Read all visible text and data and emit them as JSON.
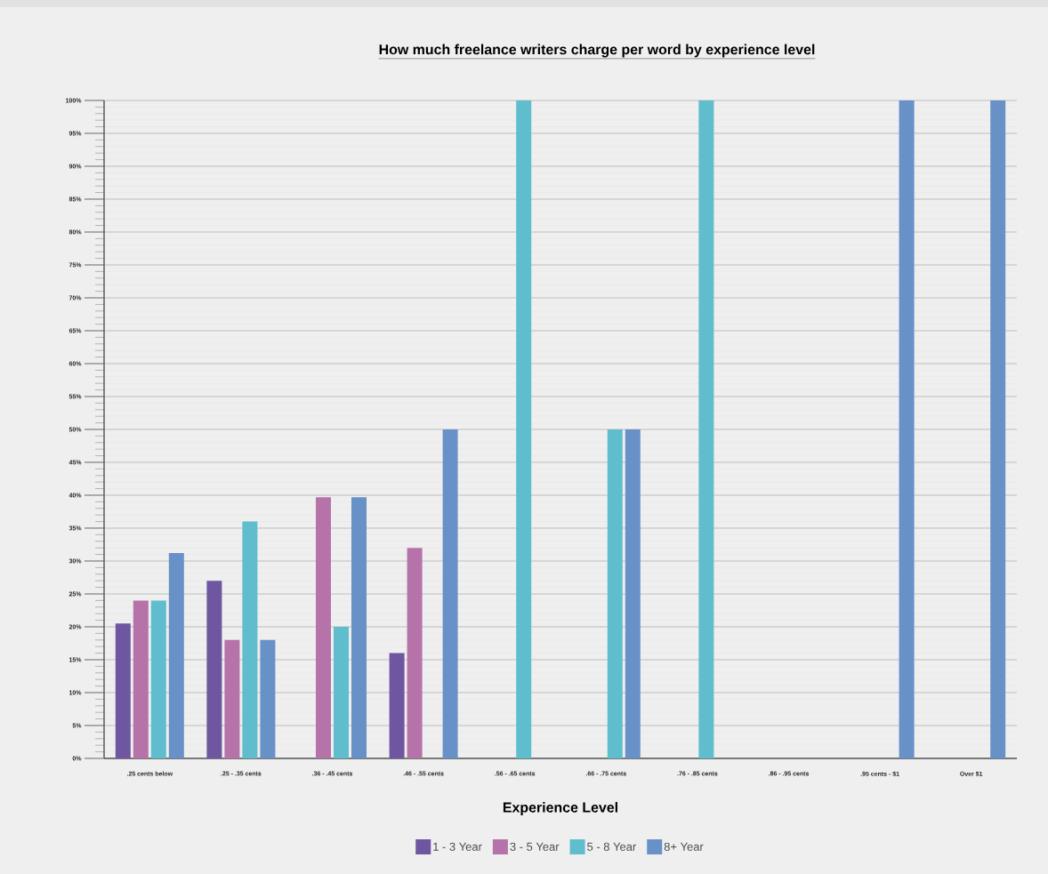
{
  "chart_data": {
    "type": "bar",
    "title": "How much freelance writers charge per word by experience level",
    "xlabel": "Experience Level",
    "categories": [
      ".25 cents below",
      ".25 - .35 cents",
      ".36 - .45 cents",
      ".46 - .55 cents",
      ".56 - .65 cents",
      ".66 - .75 cents",
      ".76 - .85 cents",
      ".86 - .95 cents",
      ".95 cents - $1",
      "Over $1"
    ],
    "series": [
      {
        "name": "1 - 3 Year",
        "color": "#6e56a0",
        "values": [
          20.5,
          27,
          0,
          16,
          0,
          0,
          0,
          0,
          0,
          0
        ]
      },
      {
        "name": "3 - 5 Year",
        "color": "#b573a9",
        "values": [
          24,
          18,
          39.7,
          32,
          0,
          0,
          0,
          0,
          0,
          0
        ]
      },
      {
        "name": "5 - 8 Year",
        "color": "#5fbdce",
        "values": [
          24,
          36,
          20,
          0,
          100,
          50,
          100,
          0,
          0,
          0
        ]
      },
      {
        "name": "8+ Year",
        "color": "#6891c8",
        "values": [
          31.2,
          18,
          39.7,
          50,
          0,
          50,
          0,
          0,
          100,
          100
        ]
      }
    ],
    "ylim": [
      0,
      100
    ],
    "yticks": [
      {
        "value": 0,
        "label": "0%"
      },
      {
        "value": 5,
        "label": "5%"
      },
      {
        "value": 10,
        "label": "10%"
      },
      {
        "value": 15,
        "label": "15%"
      },
      {
        "value": 20,
        "label": "20%"
      },
      {
        "value": 25,
        "label": "25%"
      },
      {
        "value": 30,
        "label": "30%"
      },
      {
        "value": 35,
        "label": "35%"
      },
      {
        "value": 40,
        "label": "40%"
      },
      {
        "value": 45,
        "label": "45%"
      },
      {
        "value": 50,
        "label": "50%"
      },
      {
        "value": 55,
        "label": "55%"
      },
      {
        "value": 60,
        "label": "60%"
      },
      {
        "value": 65,
        "label": "65%"
      },
      {
        "value": 70,
        "label": "70%"
      },
      {
        "value": 75,
        "label": "75%"
      },
      {
        "value": 80,
        "label": "80%"
      },
      {
        "value": 85,
        "label": "85%"
      },
      {
        "value": 90,
        "label": "90%"
      },
      {
        "value": 95,
        "label": "95%"
      },
      {
        "value": 100,
        "label": "100%"
      }
    ],
    "grid": "y",
    "legend": "bottom"
  }
}
